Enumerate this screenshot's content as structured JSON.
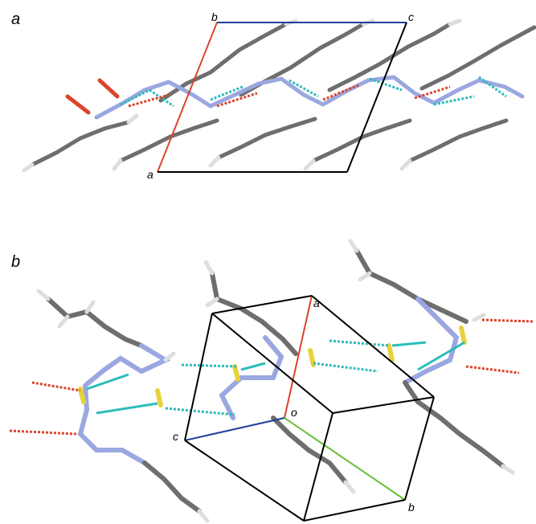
{
  "panels": [
    {
      "label": "a",
      "axis_labels": {
        "a": "a",
        "b": "b",
        "c": "c"
      }
    },
    {
      "label": "b",
      "axis_labels": {
        "a": "a",
        "b": "b",
        "c": "c",
        "origin": "o"
      }
    }
  ],
  "colors": {
    "axis_a": "#d9452b",
    "axis_b": "#6bbf3a",
    "axis_c": "#1f3f9a",
    "cell_edge": "#000000",
    "carbon": "#6e6e6e",
    "hydrogen": "#dedede",
    "nitrogen": "#9aa7e0",
    "sulfur": "#e8d23a",
    "oxygen_hbond": "#d9452b",
    "hbond_ns": "#2bbcbc"
  }
}
